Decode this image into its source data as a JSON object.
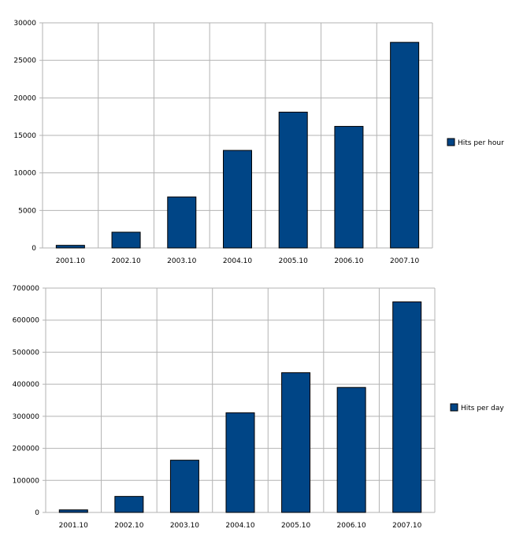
{
  "chart_data": [
    {
      "type": "bar",
      "categories": [
        "2001.10",
        "2002.10",
        "2003.10",
        "2004.10",
        "2005.10",
        "2006.10",
        "2007.10"
      ],
      "series": [
        {
          "name": "Hits per hour",
          "values": [
            350,
            2100,
            6800,
            13000,
            18100,
            16200,
            27400
          ]
        }
      ],
      "ylim": [
        0,
        30000
      ],
      "yticks": [
        0,
        5000,
        10000,
        15000,
        20000,
        25000,
        30000
      ],
      "ytick_labels": [
        "0",
        "5000",
        "10000",
        "15000",
        "20000",
        "25000",
        "30000"
      ],
      "grid": true,
      "legend_position": "right",
      "color": "#004586"
    },
    {
      "type": "bar",
      "categories": [
        "2001.10",
        "2002.10",
        "2003.10",
        "2004.10",
        "2005.10",
        "2006.10",
        "2007.10"
      ],
      "series": [
        {
          "name": "Hits per day",
          "values": [
            8000,
            50000,
            163000,
            311000,
            436000,
            390000,
            657000
          ]
        }
      ],
      "ylim": [
        0,
        700000
      ],
      "yticks": [
        0,
        100000,
        200000,
        300000,
        400000,
        500000,
        600000,
        700000
      ],
      "ytick_labels": [
        "0",
        "100000",
        "200000",
        "300000",
        "400000",
        "500000",
        "600000",
        "700000"
      ],
      "grid": true,
      "legend_position": "right",
      "color": "#004586"
    }
  ]
}
